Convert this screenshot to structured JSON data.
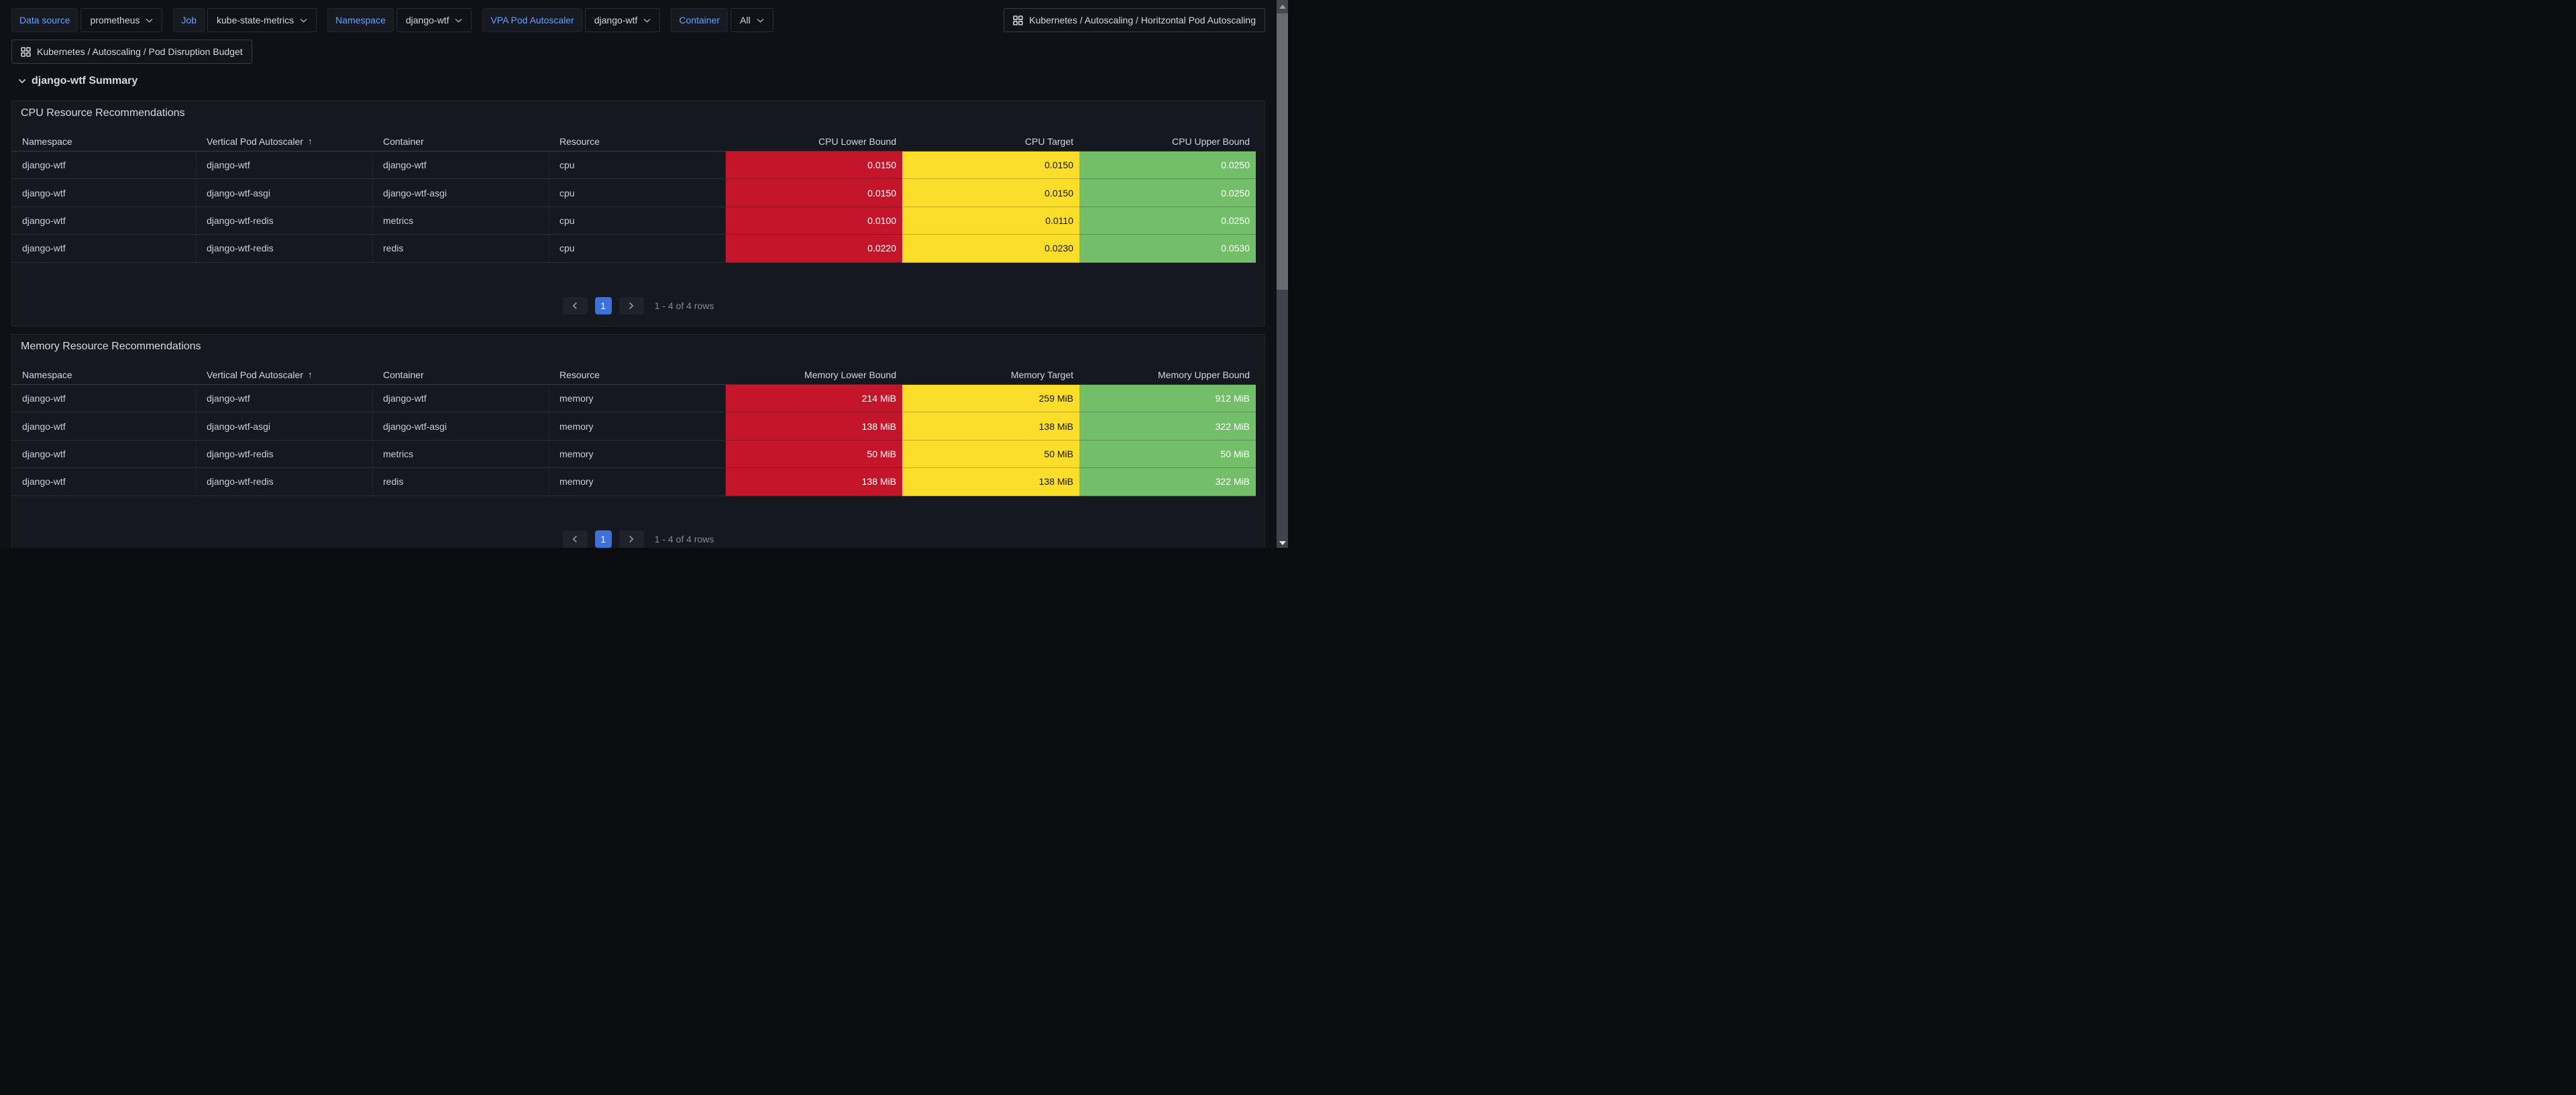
{
  "toolbar": {
    "variables": [
      {
        "label": "Data source",
        "value": "prometheus"
      },
      {
        "label": "Job",
        "value": "kube-state-metrics"
      },
      {
        "label": "Namespace",
        "value": "django-wtf"
      },
      {
        "label": "VPA Pod Autoscaler",
        "value": "django-wtf"
      },
      {
        "label": "Container",
        "value": "All"
      }
    ],
    "dashboard_links": [
      {
        "label": "Kubernetes / Autoscaling / Horitzontal Pod Autoscaling"
      },
      {
        "label": "Kubernetes / Autoscaling / Pod Disruption Budget"
      }
    ]
  },
  "summary_row": {
    "title": "django-wtf Summary"
  },
  "icons": {
    "variable_dropdown": "chevron-down",
    "dashboard_link": "apps-grid",
    "row_collapse": "chevron-down",
    "sort": "arrow-up",
    "pager_prev": "chevron-left",
    "pager_next": "chevron-right",
    "scroll_up": "triangle-up",
    "scroll_down": "triangle-down"
  },
  "colors": {
    "lower_bound_bg": "#C4162A",
    "target_bg": "#FADE2A",
    "upper_bound_bg": "#73BF69",
    "lower_bound_text": "#FFFFFF",
    "target_text": "#141414",
    "upper_bound_text": "#FFFFFF",
    "accent_blue": "#3D71D9",
    "link_blue": "#6E9FFF"
  },
  "panels": [
    {
      "title": "CPU Resource Recommendations",
      "columns": [
        "Namespace",
        "Vertical Pod Autoscaler",
        "Container",
        "Resource",
        "CPU Lower Bound",
        "CPU Target",
        "CPU Upper Bound"
      ],
      "sorted_column": "Vertical Pod Autoscaler",
      "sort_direction": "asc",
      "sort_glyph": "↑",
      "rows": [
        [
          "django-wtf",
          "django-wtf",
          "django-wtf",
          "cpu",
          "0.0150",
          "0.0150",
          "0.0250"
        ],
        [
          "django-wtf",
          "django-wtf-asgi",
          "django-wtf-asgi",
          "cpu",
          "0.0150",
          "0.0150",
          "0.0250"
        ],
        [
          "django-wtf",
          "django-wtf-redis",
          "metrics",
          "cpu",
          "0.0100",
          "0.0110",
          "0.0250"
        ],
        [
          "django-wtf",
          "django-wtf-redis",
          "redis",
          "cpu",
          "0.0220",
          "0.0230",
          "0.0530"
        ]
      ],
      "pagination": {
        "page": "1",
        "summary": "1 - 4 of 4 rows"
      }
    },
    {
      "title": "Memory Resource Recommendations",
      "columns": [
        "Namespace",
        "Vertical Pod Autoscaler",
        "Container",
        "Resource",
        "Memory Lower Bound",
        "Memory Target",
        "Memory Upper Bound"
      ],
      "sorted_column": "Vertical Pod Autoscaler",
      "sort_direction": "asc",
      "sort_glyph": "↑",
      "rows": [
        [
          "django-wtf",
          "django-wtf",
          "django-wtf",
          "memory",
          "214 MiB",
          "259 MiB",
          "912 MiB"
        ],
        [
          "django-wtf",
          "django-wtf-asgi",
          "django-wtf-asgi",
          "memory",
          "138 MiB",
          "138 MiB",
          "322 MiB"
        ],
        [
          "django-wtf",
          "django-wtf-redis",
          "metrics",
          "memory",
          "50 MiB",
          "50 MiB",
          "50 MiB"
        ],
        [
          "django-wtf",
          "django-wtf-redis",
          "redis",
          "memory",
          "138 MiB",
          "138 MiB",
          "322 MiB"
        ]
      ],
      "pagination": {
        "page": "1",
        "summary": "1 - 4 of 4 rows"
      }
    }
  ]
}
